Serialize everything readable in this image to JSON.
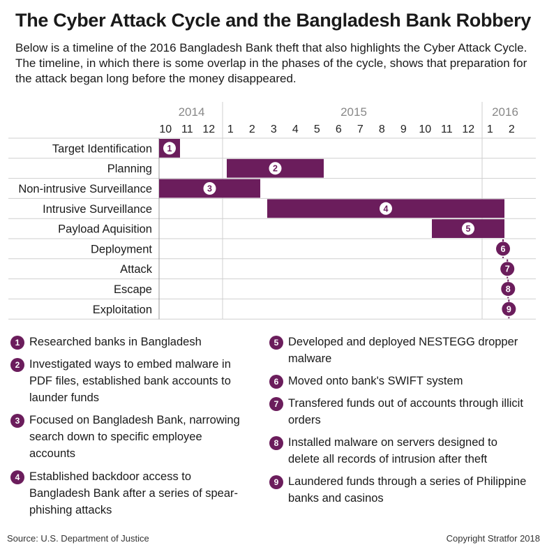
{
  "header": {
    "title": "The Cyber Attack Cycle and the Bangladesh Bank Robbery",
    "subtitle": "Below is a timeline of the 2016 Bangladesh Bank theft that also highlights the Cyber Attack Cycle. The timeline, in which there is some overlap in the phases of the cycle, shows that preparation for the attack began long before the money disappeared."
  },
  "chart_data": {
    "type": "gantt",
    "bar_color": "#6b1d5c",
    "years": [
      {
        "label": "2014",
        "start": "2014-10",
        "end": "2014-12"
      },
      {
        "label": "2015",
        "start": "2015-01",
        "end": "2015-12"
      },
      {
        "label": "2016",
        "start": "2016-01",
        "end": "2016-02"
      }
    ],
    "months": [
      "10",
      "11",
      "12",
      "1",
      "2",
      "3",
      "4",
      "5",
      "6",
      "7",
      "8",
      "9",
      "10",
      "11",
      "12",
      "1",
      "2"
    ],
    "x_range": [
      "2014-10",
      "2016-02"
    ],
    "phases": [
      {
        "label": "Target Identification",
        "marker": "1",
        "start": "2014-10-01",
        "end": "2014-10-31"
      },
      {
        "label": "Planning",
        "marker": "2",
        "start": "2015-01-05",
        "end": "2015-05-20"
      },
      {
        "label": "Non-intrusive Surveillance",
        "marker": "3",
        "start": "2014-10-01",
        "end": "2015-02-20"
      },
      {
        "label": "Intrusive Surveillance",
        "marker": "4",
        "start": "2015-03-01",
        "end": "2016-01-31"
      },
      {
        "label": "Payload Aquisition",
        "marker": "5",
        "start": "2015-10-20",
        "end": "2016-01-31"
      },
      {
        "label": "Deployment",
        "marker": "6",
        "date": "2016-01-29"
      },
      {
        "label": "Attack",
        "marker": "7",
        "date": "2016-02-04"
      },
      {
        "label": "Escape",
        "marker": "8",
        "date": "2016-02-05"
      },
      {
        "label": "Exploitation",
        "marker": "9",
        "date": "2016-02-06"
      }
    ]
  },
  "notes": [
    {
      "marker": "1",
      "text": "Researched banks in Bangladesh"
    },
    {
      "marker": "2",
      "text": "Investigated ways to embed malware in PDF files, established bank accounts to launder funds"
    },
    {
      "marker": "3",
      "text": "Focused on Bangladesh Bank, narrowing search down to specific employee accounts"
    },
    {
      "marker": "4",
      "text": "Established backdoor access to Bangladesh Bank after a series of spear-phishing attacks"
    },
    {
      "marker": "5",
      "text": "Developed and deployed NESTEGG dropper malware"
    },
    {
      "marker": "6",
      "text": "Moved onto bank's SWIFT system"
    },
    {
      "marker": "7",
      "text": "Transfered funds out of accounts through illicit orders"
    },
    {
      "marker": "8",
      "text": "Installed malware on servers designed to delete all records of intrusion after theft"
    },
    {
      "marker": "9",
      "text": "Laundered funds through a series of Philippine banks and casinos"
    }
  ],
  "footer": {
    "source": "Source: U.S. Department of Justice",
    "copyright": "Copyright Stratfor 2018"
  }
}
